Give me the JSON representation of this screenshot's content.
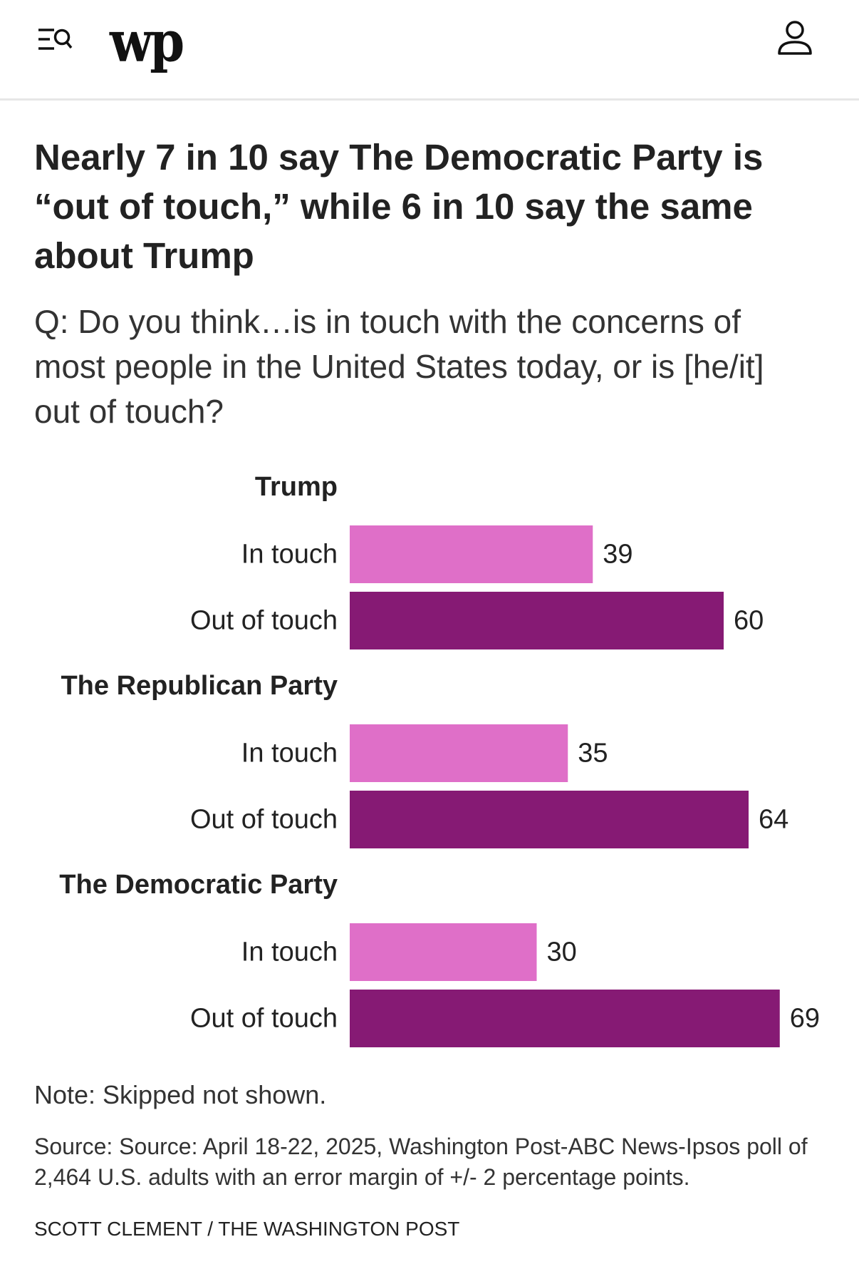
{
  "header": {
    "logo_text": "wp",
    "menu_icon": "menu-search-icon",
    "account_icon": "user-icon"
  },
  "headline": "Nearly 7 in 10 say The Democratic Party is “out of touch,” while 6 in 10 say the same about Trump",
  "subtitle": "Q: Do you think…is in touch with the concerns of most people in the United States today, or is [he/it] out of touch?",
  "note": "Note: Skipped not shown.",
  "source": "Source: Source: April 18-22, 2025, Washington Post-ABC News-Ipsos poll of 2,464 U.S. adults with an error margin of +/- 2 percentage points.",
  "credit": "SCOTT CLEMENT / THE WASHINGTON POST",
  "chart_data": {
    "type": "bar",
    "orientation": "horizontal",
    "xlim": [
      0,
      100
    ],
    "grid": false,
    "colors": {
      "In touch": "#df6fc8",
      "Out of touch": "#861a74"
    },
    "groups": [
      {
        "name": "Trump",
        "bars": [
          {
            "label": "In touch",
            "value": 39
          },
          {
            "label": "Out of touch",
            "value": 60
          }
        ]
      },
      {
        "name": "The Republican Party",
        "bars": [
          {
            "label": "In touch",
            "value": 35
          },
          {
            "label": "Out of touch",
            "value": 64
          }
        ]
      },
      {
        "name": "The Democratic Party",
        "bars": [
          {
            "label": "In touch",
            "value": 30
          },
          {
            "label": "Out of touch",
            "value": 69
          }
        ]
      }
    ]
  }
}
